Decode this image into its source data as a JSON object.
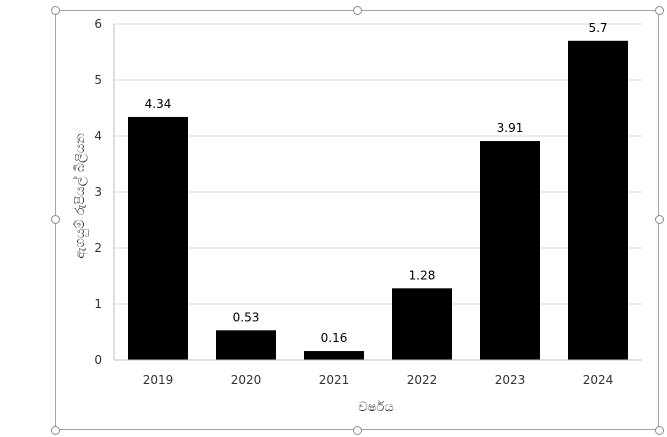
{
  "chart_data": {
    "type": "bar",
    "categories": [
      "2019",
      "2020",
      "2021",
      "2022",
      "2023",
      "2024"
    ],
    "values": [
      4.34,
      0.53,
      0.16,
      1.28,
      3.91,
      5.7
    ],
    "data_labels": [
      "4.34",
      "0.53",
      "0.16",
      "1.28",
      "3.91",
      "5.7"
    ],
    "title": "",
    "xlabel": "වර්ෂය",
    "ylabel": "ඇගයුම් රුපියල් බිලියන",
    "ylim": [
      0,
      6
    ],
    "yticks": [
      "0",
      "1",
      "2",
      "3",
      "4",
      "5",
      "6"
    ],
    "grid": true,
    "legend": "none",
    "bar_color": "#000000",
    "grid_color": "#d9d9d9"
  }
}
